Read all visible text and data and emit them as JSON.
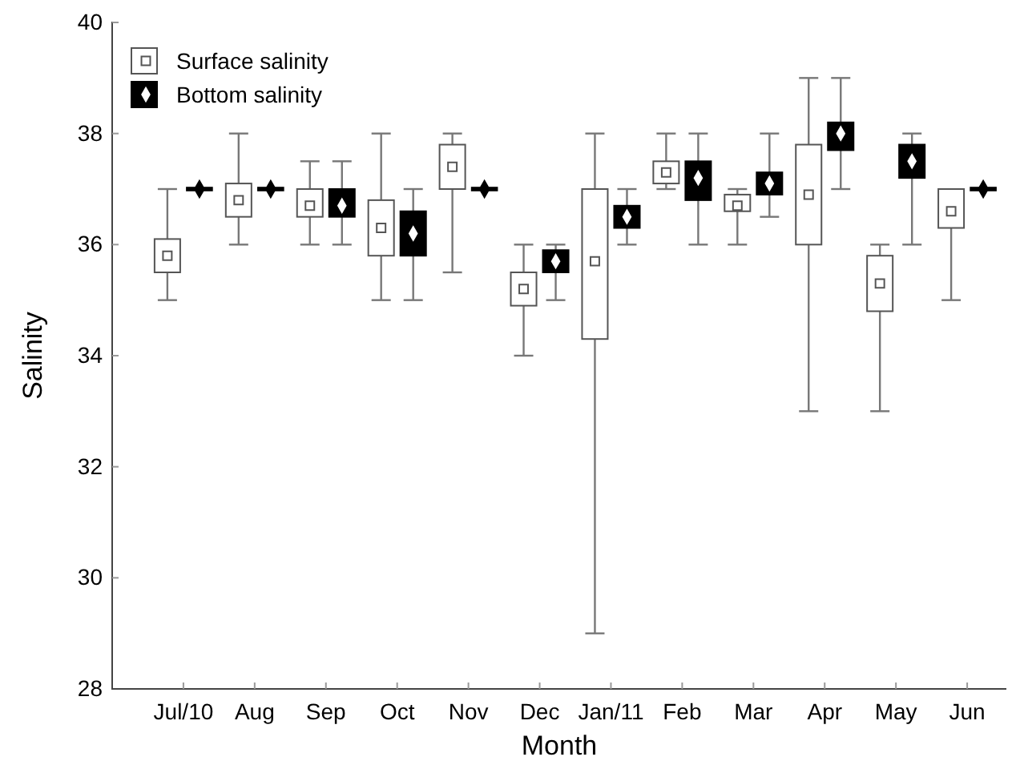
{
  "chart_data": {
    "type": "box",
    "xlabel": "Month",
    "ylabel": "Salinity",
    "categories": [
      "Jul/10",
      "Aug",
      "Sep",
      "Oct",
      "Nov",
      "Dec",
      "Jan/11",
      "Feb",
      "Mar",
      "Apr",
      "May",
      "Jun"
    ],
    "ylim": [
      28,
      40
    ],
    "yticks": [
      28,
      30,
      32,
      34,
      36,
      38,
      40
    ],
    "grid": false,
    "legend": "top left",
    "series": [
      {
        "name": "Surface salinity",
        "color": "#ffffff",
        "marker": "square",
        "boxes": [
          {
            "low": 35,
            "q1": 35.5,
            "median": 35.8,
            "q3": 36.1,
            "high": 37
          },
          {
            "low": 36,
            "q1": 36.5,
            "median": 36.8,
            "q3": 37.1,
            "high": 38
          },
          {
            "low": 36,
            "q1": 36.5,
            "median": 36.7,
            "q3": 37,
            "high": 37.5
          },
          {
            "low": 35,
            "q1": 35.8,
            "median": 36.3,
            "q3": 36.8,
            "high": 38
          },
          {
            "low": 35.5,
            "q1": 37,
            "median": 37.4,
            "q3": 37.8,
            "high": 38
          },
          {
            "low": 34,
            "q1": 34.9,
            "median": 35.2,
            "q3": 35.5,
            "high": 36
          },
          {
            "low": 29,
            "q1": 34.3,
            "median": 35.7,
            "q3": 37,
            "high": 38
          },
          {
            "low": 37,
            "q1": 37.1,
            "median": 37.3,
            "q3": 37.5,
            "high": 38
          },
          {
            "low": 36,
            "q1": 36.6,
            "median": 36.7,
            "q3": 36.9,
            "high": 37
          },
          {
            "low": 33,
            "q1": 36,
            "median": 36.9,
            "q3": 37.8,
            "high": 39
          },
          {
            "low": 33,
            "q1": 34.8,
            "median": 35.3,
            "q3": 35.8,
            "high": 36
          },
          {
            "low": 35,
            "q1": 36.3,
            "median": 36.6,
            "q3": 37,
            "high": 37
          }
        ]
      },
      {
        "name": "Bottom salinity",
        "color": "#000000",
        "marker": "diamond",
        "boxes": [
          {
            "low": 37,
            "q1": 37,
            "median": 37,
            "q3": 37,
            "high": 37
          },
          {
            "low": 37,
            "q1": 37,
            "median": 37,
            "q3": 37,
            "high": 37
          },
          {
            "low": 36,
            "q1": 36.5,
            "median": 36.7,
            "q3": 37,
            "high": 37.5
          },
          {
            "low": 35,
            "q1": 35.8,
            "median": 36.2,
            "q3": 36.6,
            "high": 37
          },
          {
            "low": 37,
            "q1": 37,
            "median": 37,
            "q3": 37,
            "high": 37
          },
          {
            "low": 35,
            "q1": 35.5,
            "median": 35.7,
            "q3": 35.9,
            "high": 36
          },
          {
            "low": 36,
            "q1": 36.3,
            "median": 36.5,
            "q3": 36.7,
            "high": 37
          },
          {
            "low": 36,
            "q1": 36.8,
            "median": 37.2,
            "q3": 37.5,
            "high": 38
          },
          {
            "low": 36.5,
            "q1": 36.9,
            "median": 37.1,
            "q3": 37.3,
            "high": 38
          },
          {
            "low": 37,
            "q1": 37.7,
            "median": 38,
            "q3": 38.2,
            "high": 39
          },
          {
            "low": 36,
            "q1": 37.2,
            "median": 37.5,
            "q3": 37.8,
            "high": 38
          },
          {
            "low": 37,
            "q1": 37,
            "median": 37,
            "q3": 37,
            "high": 37
          }
        ]
      }
    ]
  }
}
